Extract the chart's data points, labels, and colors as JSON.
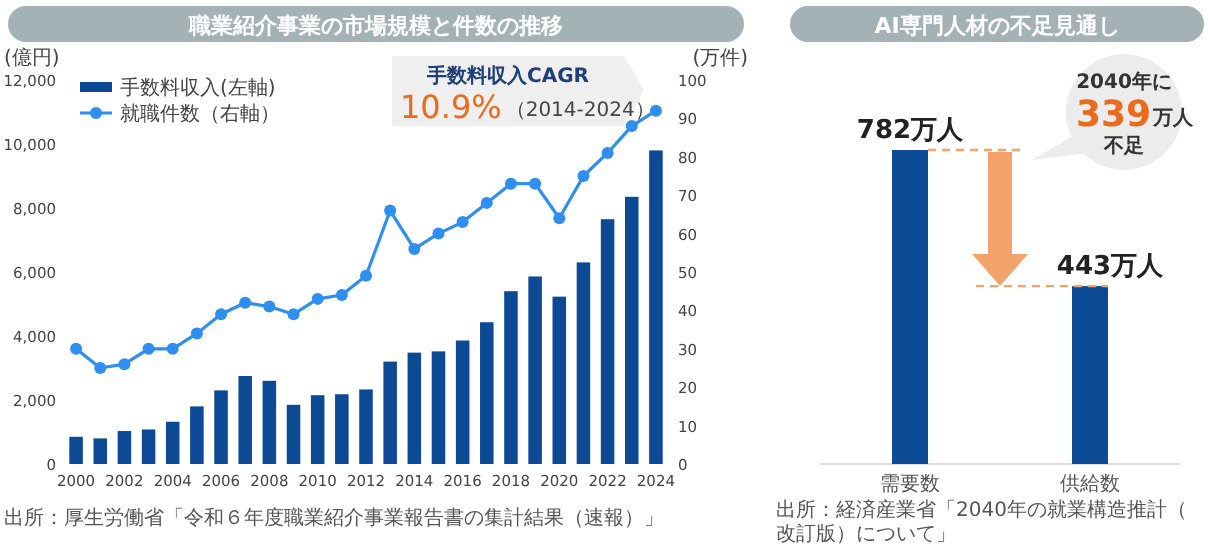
{
  "chart_data": [
    {
      "type": "bar",
      "title": "職業紹介事業の市場規模と件数の推移",
      "ylabel": "(億円)",
      "y2label": "(万件)",
      "categories": [
        "2000",
        null,
        "2002",
        null,
        "2004",
        null,
        "2006",
        null,
        "2008",
        null,
        "2010",
        null,
        "2012",
        null,
        "2014",
        null,
        "2016",
        null,
        "2018",
        null,
        "2020",
        null,
        "2022",
        null,
        "2024"
      ],
      "series": [
        {
          "name": "手数料収入(左軸)",
          "type": "bar",
          "color": "#0d4a96",
          "values": [
            850,
            800,
            1030,
            1080,
            1320,
            1800,
            2300,
            2750,
            2600,
            1850,
            2150,
            2180,
            2330,
            3200,
            3480,
            3520,
            3860,
            4430,
            5400,
            5860,
            5230,
            6300,
            7650,
            8350,
            9800
          ]
        },
        {
          "name": "就職件数（右軸）",
          "type": "line",
          "axis": "y2",
          "color": "#2e8ff0",
          "values": [
            30,
            25,
            26,
            30,
            30,
            34,
            39,
            42,
            41,
            39,
            43,
            44,
            49,
            66,
            56,
            60,
            63,
            68,
            73,
            73,
            64,
            75,
            81,
            88,
            92
          ]
        }
      ],
      "ylim": [
        0,
        12000
      ],
      "yticks": [
        0,
        {
          "value": 2000,
          "label": "2,000"
        },
        {
          "value": 4000,
          "label": "4,000"
        },
        {
          "value": 6000,
          "label": "6,000"
        },
        {
          "value": 8000,
          "label": "8,000"
        },
        {
          "value": 10000,
          "label": "10,000"
        },
        {
          "value": 12000,
          "label": "12,000"
        }
      ],
      "y2lim": [
        0,
        100
      ],
      "y2ticks": [
        0,
        10,
        20,
        30,
        40,
        50,
        60,
        70,
        80,
        90,
        100
      ],
      "marker": "circle",
      "legend": "top left",
      "grid": false,
      "annotations": [
        "手数料収入CAGR",
        "10.9%",
        "（2014-2024）",
        "出所：厚生労働省「令和６年度職業紹介事業報告書の集計結果（速報）」"
      ]
    },
    {
      "type": "bar",
      "title": "AI専門人材の不足見通し",
      "categories": [
        "需要数",
        "供給数"
      ],
      "values": [
        782,
        443
      ],
      "color": "#0d4a96",
      "value_labels": [
        "782万人",
        "443万人"
      ],
      "ref_lines": [
        {
          "axis": "y",
          "value": 782,
          "color": "#f4a46a",
          "line_style": "dashed"
        },
        {
          "axis": "y",
          "value": 443,
          "color": "#f4a46a",
          "line_style": "dashed"
        }
      ],
      "annotations": [
        "2040年に",
        "339",
        "万人",
        "不足",
        "出所：経済産業省「2040年の就業構造推計（改訂版）について」"
      ]
    }
  ]
}
